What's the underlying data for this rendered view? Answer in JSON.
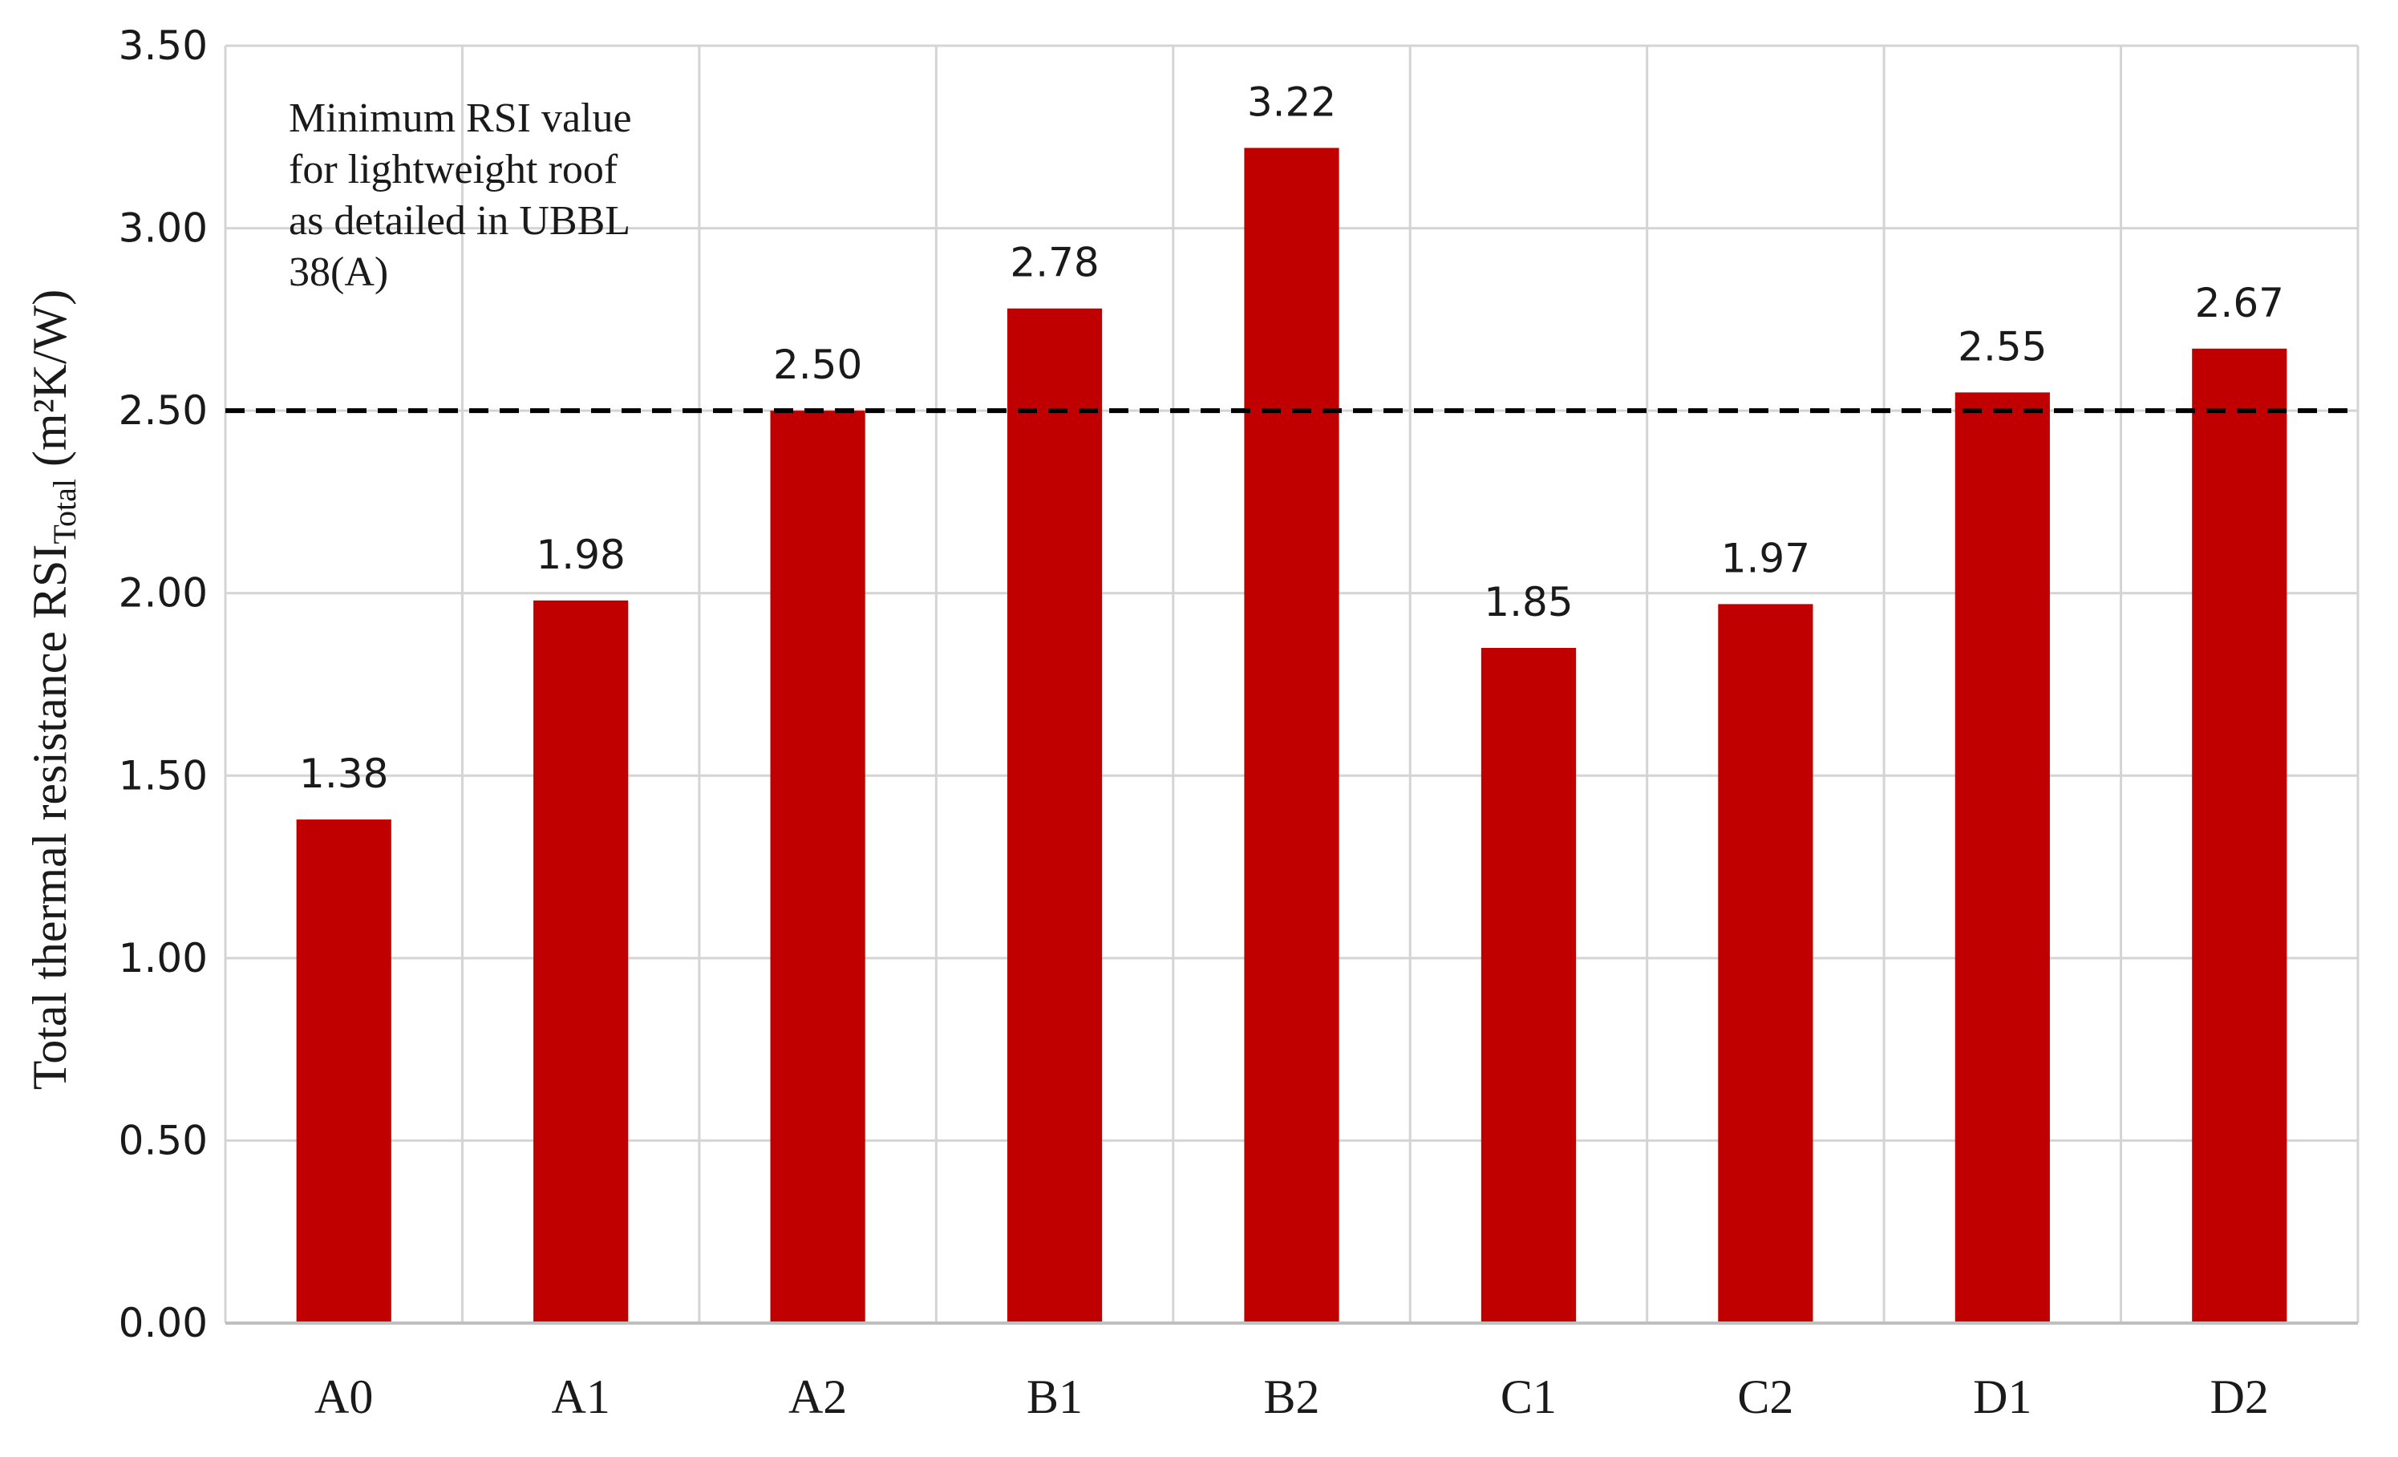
{
  "chart_data": {
    "type": "bar",
    "categories": [
      "A0",
      "A1",
      "A2",
      "B1",
      "B2",
      "C1",
      "C2",
      "D1",
      "D2"
    ],
    "values": [
      1.38,
      1.98,
      2.5,
      2.78,
      3.22,
      1.85,
      1.97,
      2.55,
      2.67
    ],
    "data_labels": [
      "1.38",
      "1.98",
      "2.50",
      "2.78",
      "3.22",
      "1.85",
      "1.97",
      "2.55",
      "2.67"
    ],
    "ylim": [
      0,
      3.5
    ],
    "yticks": [
      0,
      0.5,
      1.0,
      1.5,
      2.0,
      2.5,
      3.0,
      3.5
    ],
    "ytick_labels": [
      "0.00",
      "0.50",
      "1.00",
      "1.50",
      "2.00",
      "2.50",
      "3.00",
      "3.50"
    ],
    "ylabel": {
      "main": "Total thermal resistance RSI",
      "subscript": "Total",
      "units": " (m²K/W)"
    },
    "xlabel": "",
    "grid": true,
    "bar_color": "#c00000",
    "reference_line": {
      "value": 2.5,
      "style": "dashed",
      "color": "#000000"
    },
    "annotation_lines": [
      "Minimum RSI value",
      "for lightweight roof",
      "as detailed in UBBL",
      "38(A)"
    ]
  }
}
